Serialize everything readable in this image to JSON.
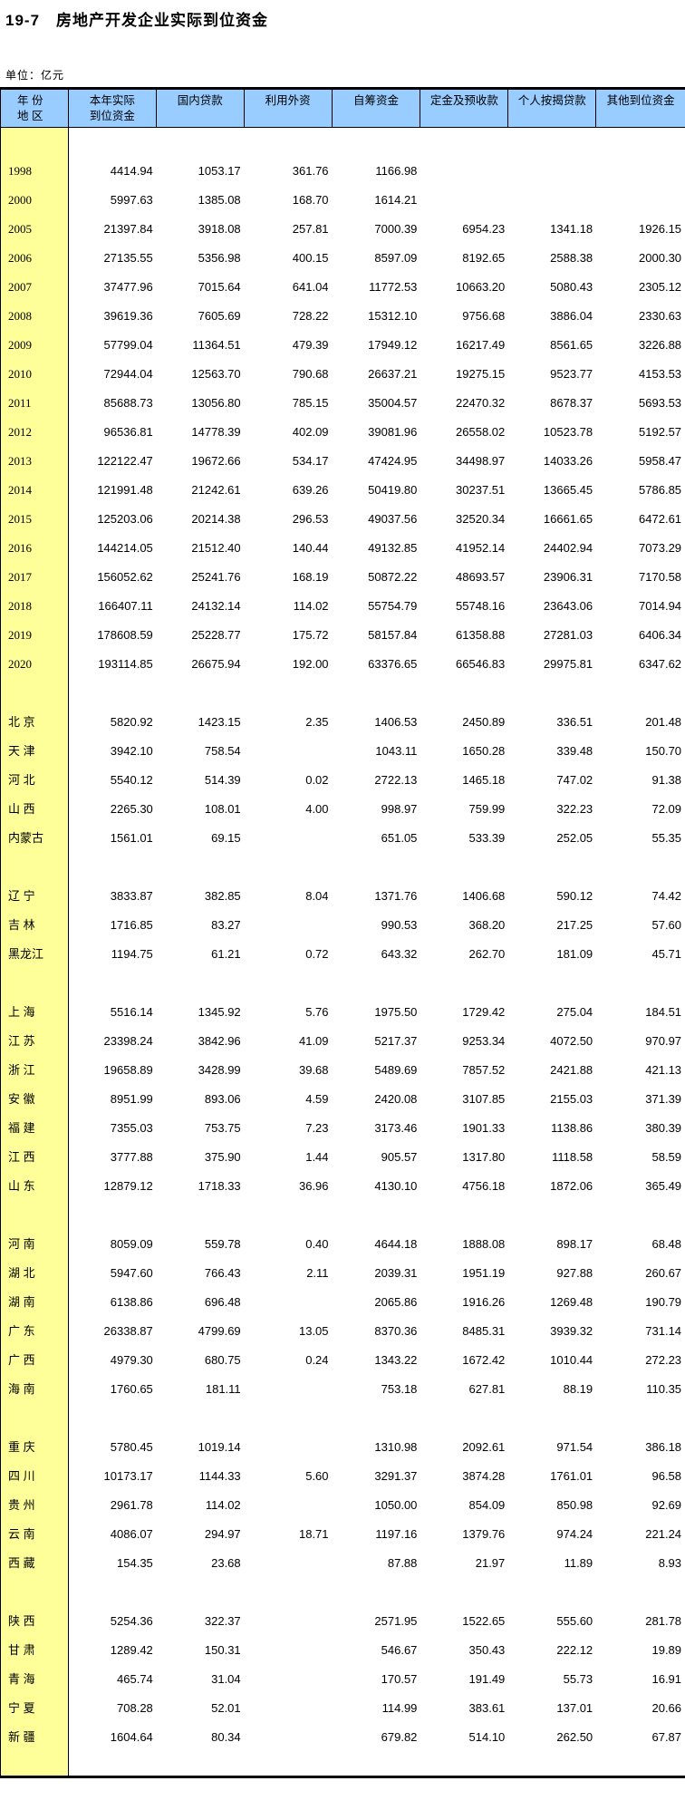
{
  "title": "19-7　房地产开发企业实际到位资金",
  "unit_label": "单位：亿元",
  "colors": {
    "header_bg": "#99CCFF",
    "label_column_bg": "#FFFF99",
    "border": "#000000"
  },
  "table": {
    "headers": [
      {
        "lines": [
          "年 份",
          "地 区"
        ]
      },
      {
        "lines": [
          "本年实际",
          "到位资金"
        ]
      },
      {
        "lines": [
          "国内贷款"
        ]
      },
      {
        "lines": [
          "利用外资"
        ]
      },
      {
        "lines": [
          "自筹资金"
        ]
      },
      {
        "lines": [
          "定金及预收款"
        ]
      },
      {
        "lines": [
          "个人按揭贷款"
        ]
      },
      {
        "lines": [
          "其他到位资金"
        ]
      }
    ],
    "groups": [
      {
        "rows": [
          [
            "1998",
            "4414.94",
            "1053.17",
            "361.76",
            "1166.98",
            "",
            "",
            ""
          ],
          [
            "2000",
            "5997.63",
            "1385.08",
            "168.70",
            "1614.21",
            "",
            "",
            ""
          ],
          [
            "2005",
            "21397.84",
            "3918.08",
            "257.81",
            "7000.39",
            "6954.23",
            "1341.18",
            "1926.15"
          ],
          [
            "2006",
            "27135.55",
            "5356.98",
            "400.15",
            "8597.09",
            "8192.65",
            "2588.38",
            "2000.30"
          ],
          [
            "2007",
            "37477.96",
            "7015.64",
            "641.04",
            "11772.53",
            "10663.20",
            "5080.43",
            "2305.12"
          ],
          [
            "2008",
            "39619.36",
            "7605.69",
            "728.22",
            "15312.10",
            "9756.68",
            "3886.04",
            "2330.63"
          ],
          [
            "2009",
            "57799.04",
            "11364.51",
            "479.39",
            "17949.12",
            "16217.49",
            "8561.65",
            "3226.88"
          ],
          [
            "2010",
            "72944.04",
            "12563.70",
            "790.68",
            "26637.21",
            "19275.15",
            "9523.77",
            "4153.53"
          ],
          [
            "2011",
            "85688.73",
            "13056.80",
            "785.15",
            "35004.57",
            "22470.32",
            "8678.37",
            "5693.53"
          ],
          [
            "2012",
            "96536.81",
            "14778.39",
            "402.09",
            "39081.96",
            "26558.02",
            "10523.78",
            "5192.57"
          ],
          [
            "2013",
            "122122.47",
            "19672.66",
            "534.17",
            "47424.95",
            "34498.97",
            "14033.26",
            "5958.47"
          ],
          [
            "2014",
            "121991.48",
            "21242.61",
            "639.26",
            "50419.80",
            "30237.51",
            "13665.45",
            "5786.85"
          ],
          [
            "2015",
            "125203.06",
            "20214.38",
            "296.53",
            "49037.56",
            "32520.34",
            "16661.65",
            "6472.61"
          ],
          [
            "2016",
            "144214.05",
            "21512.40",
            "140.44",
            "49132.85",
            "41952.14",
            "24402.94",
            "7073.29"
          ],
          [
            "2017",
            "156052.62",
            "25241.76",
            "168.19",
            "50872.22",
            "48693.57",
            "23906.31",
            "7170.58"
          ],
          [
            "2018",
            "166407.11",
            "24132.14",
            "114.02",
            "55754.79",
            "55748.16",
            "23643.06",
            "7014.94"
          ],
          [
            "2019",
            "178608.59",
            "25228.77",
            "175.72",
            "58157.84",
            "61358.88",
            "27281.03",
            "6406.34"
          ],
          [
            "2020",
            "193114.85",
            "26675.94",
            "192.00",
            "63376.65",
            "66546.83",
            "29975.81",
            "6347.62"
          ]
        ]
      },
      {
        "rows": [
          [
            "北 京",
            "5820.92",
            "1423.15",
            "2.35",
            "1406.53",
            "2450.89",
            "336.51",
            "201.48"
          ],
          [
            "天 津",
            "3942.10",
            "758.54",
            "",
            "1043.11",
            "1650.28",
            "339.48",
            "150.70"
          ],
          [
            "河 北",
            "5540.12",
            "514.39",
            "0.02",
            "2722.13",
            "1465.18",
            "747.02",
            "91.38"
          ],
          [
            "山 西",
            "2265.30",
            "108.01",
            "4.00",
            "998.97",
            "759.99",
            "322.23",
            "72.09"
          ],
          [
            "内蒙古",
            "1561.01",
            "69.15",
            "",
            "651.05",
            "533.39",
            "252.05",
            "55.35"
          ]
        ]
      },
      {
        "rows": [
          [
            "辽 宁",
            "3833.87",
            "382.85",
            "8.04",
            "1371.76",
            "1406.68",
            "590.12",
            "74.42"
          ],
          [
            "吉 林",
            "1716.85",
            "83.27",
            "",
            "990.53",
            "368.20",
            "217.25",
            "57.60"
          ],
          [
            "黑龙江",
            "1194.75",
            "61.21",
            "0.72",
            "643.32",
            "262.70",
            "181.09",
            "45.71"
          ]
        ]
      },
      {
        "rows": [
          [
            "上 海",
            "5516.14",
            "1345.92",
            "5.76",
            "1975.50",
            "1729.42",
            "275.04",
            "184.51"
          ],
          [
            "江 苏",
            "23398.24",
            "3842.96",
            "41.09",
            "5217.37",
            "9253.34",
            "4072.50",
            "970.97"
          ],
          [
            "浙 江",
            "19658.89",
            "3428.99",
            "39.68",
            "5489.69",
            "7857.52",
            "2421.88",
            "421.13"
          ],
          [
            "安 徽",
            "8951.99",
            "893.06",
            "4.59",
            "2420.08",
            "3107.85",
            "2155.03",
            "371.39"
          ],
          [
            "福 建",
            "7355.03",
            "753.75",
            "7.23",
            "3173.46",
            "1901.33",
            "1138.86",
            "380.39"
          ],
          [
            "江 西",
            "3777.88",
            "375.90",
            "1.44",
            "905.57",
            "1317.80",
            "1118.58",
            "58.59"
          ],
          [
            "山 东",
            "12879.12",
            "1718.33",
            "36.96",
            "4130.10",
            "4756.18",
            "1872.06",
            "365.49"
          ]
        ]
      },
      {
        "rows": [
          [
            "河 南",
            "8059.09",
            "559.78",
            "0.40",
            "4644.18",
            "1888.08",
            "898.17",
            "68.48"
          ],
          [
            "湖 北",
            "5947.60",
            "766.43",
            "2.11",
            "2039.31",
            "1951.19",
            "927.88",
            "260.67"
          ],
          [
            "湖 南",
            "6138.86",
            "696.48",
            "",
            "2065.86",
            "1916.26",
            "1269.48",
            "190.79"
          ],
          [
            "广 东",
            "26338.87",
            "4799.69",
            "13.05",
            "8370.36",
            "8485.31",
            "3939.32",
            "731.14"
          ],
          [
            "广 西",
            "4979.30",
            "680.75",
            "0.24",
            "1343.22",
            "1672.42",
            "1010.44",
            "272.23"
          ],
          [
            "海 南",
            "1760.65",
            "181.11",
            "",
            "753.18",
            "627.81",
            "88.19",
            "110.35"
          ]
        ]
      },
      {
        "rows": [
          [
            "重 庆",
            "5780.45",
            "1019.14",
            "",
            "1310.98",
            "2092.61",
            "971.54",
            "386.18"
          ],
          [
            "四 川",
            "10173.17",
            "1144.33",
            "5.60",
            "3291.37",
            "3874.28",
            "1761.01",
            "96.58"
          ],
          [
            "贵 州",
            "2961.78",
            "114.02",
            "",
            "1050.00",
            "854.09",
            "850.98",
            "92.69"
          ],
          [
            "云 南",
            "4086.07",
            "294.97",
            "18.71",
            "1197.16",
            "1379.76",
            "974.24",
            "221.24"
          ],
          [
            "西 藏",
            "154.35",
            "23.68",
            "",
            "87.88",
            "21.97",
            "11.89",
            "8.93"
          ]
        ]
      },
      {
        "rows": [
          [
            "陕 西",
            "5254.36",
            "322.37",
            "",
            "2571.95",
            "1522.65",
            "555.60",
            "281.78"
          ],
          [
            "甘 肃",
            "1289.42",
            "150.31",
            "",
            "546.67",
            "350.43",
            "222.12",
            "19.89"
          ],
          [
            "青 海",
            "465.74",
            "31.04",
            "",
            "170.57",
            "191.49",
            "55.73",
            "16.91"
          ],
          [
            "宁 夏",
            "708.28",
            "52.01",
            "",
            "114.99",
            "383.61",
            "137.01",
            "20.66"
          ],
          [
            "新 疆",
            "1604.64",
            "80.34",
            "",
            "679.82",
            "514.10",
            "262.50",
            "67.87"
          ]
        ]
      }
    ]
  }
}
